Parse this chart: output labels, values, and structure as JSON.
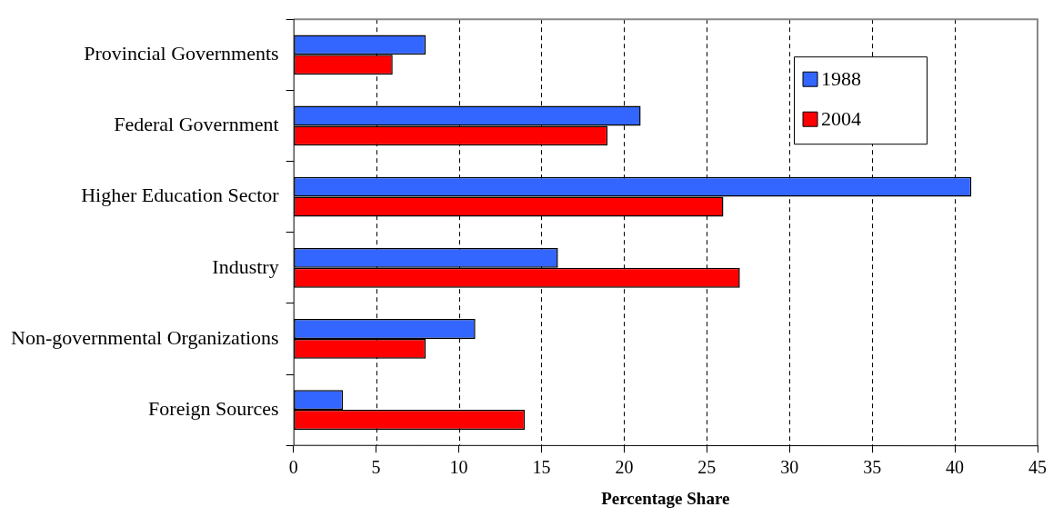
{
  "chart_data": {
    "type": "bar",
    "orientation": "horizontal",
    "xlabel": "Percentage Share",
    "categories": [
      "Provincial Governments",
      "Federal Government",
      "Higher Education Sector",
      "Industry",
      "Non-governmental Organizations",
      "Foreign Sources"
    ],
    "series": [
      {
        "name": "1988",
        "color": "#3366ff",
        "values": [
          8,
          21,
          41,
          16,
          11,
          3
        ]
      },
      {
        "name": "2004",
        "color": "#ff0000",
        "values": [
          6,
          19,
          26,
          27,
          8,
          14
        ]
      }
    ],
    "xlim": [
      0,
      45
    ],
    "xticks": [
      0,
      5,
      10,
      15,
      20,
      25,
      30,
      35,
      40,
      45
    ],
    "grid": "x",
    "legend": "top right"
  }
}
